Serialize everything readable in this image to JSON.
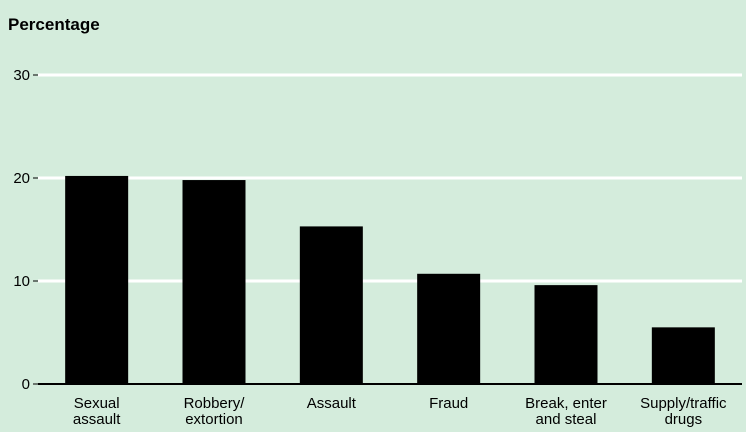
{
  "chart_data": {
    "type": "bar",
    "title": "",
    "xlabel": "",
    "ylabel": "Percentage",
    "ylim": [
      0,
      30
    ],
    "yticks": [
      0,
      10,
      20,
      30
    ],
    "grid": true,
    "categories": [
      [
        "Sexual",
        "assault"
      ],
      [
        "Robbery/",
        "extortion"
      ],
      [
        "Assault"
      ],
      [
        "Fraud"
      ],
      [
        "Break, enter",
        "and steal"
      ],
      [
        "Supply/traffic",
        "drugs"
      ]
    ],
    "values": [
      20.2,
      19.8,
      15.3,
      10.7,
      9.6,
      5.5
    ],
    "colors": {
      "background": "#d4ecdc",
      "bar": "#000000",
      "grid": "#ffffff",
      "axis": "#000000"
    }
  }
}
